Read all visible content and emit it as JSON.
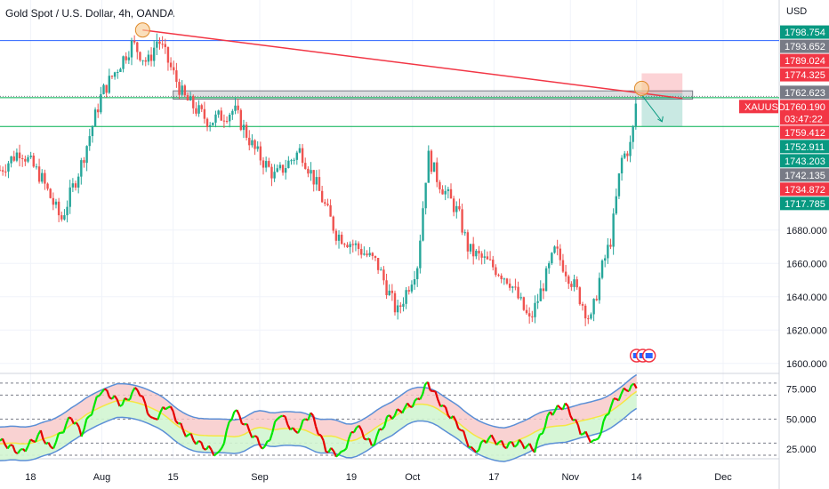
{
  "header": {
    "title": "Gold Spot / U.S. Dollar, 4h, OANDA"
  },
  "chart_data": [
    {
      "type": "candlestick",
      "symbol": "XAUUSD",
      "currency_label": "USD",
      "y_ticks": [
        "1600.000",
        "1620.000",
        "1640.000",
        "1660.000",
        "1680.000"
      ],
      "ylim": [
        1594,
        1818
      ],
      "x_ticks": [
        {
          "label": "18",
          "day": 0
        },
        {
          "label": "Aug",
          "day": 14
        },
        {
          "label": "15",
          "day": 28
        },
        {
          "label": "Sep",
          "day": 45
        },
        {
          "label": "19",
          "day": 63
        },
        {
          "label": "Oct",
          "day": 75
        },
        {
          "label": "17",
          "day": 91
        },
        {
          "label": "Nov",
          "day": 106
        },
        {
          "label": "14",
          "day": 119
        },
        {
          "label": "Dec",
          "day": 136
        }
      ],
      "x_range_days": [
        -6,
        147
      ],
      "price_path": [
        {
          "day": -6,
          "price": 1716
        },
        {
          "day": -2,
          "price": 1728
        },
        {
          "day": 2,
          "price": 1712
        },
        {
          "day": 6,
          "price": 1686
        },
        {
          "day": 10,
          "price": 1720
        },
        {
          "day": 14,
          "price": 1762
        },
        {
          "day": 20,
          "price": 1792
        },
        {
          "day": 23,
          "price": 1780
        },
        {
          "day": 25,
          "price": 1795
        },
        {
          "day": 30,
          "price": 1760
        },
        {
          "day": 35,
          "price": 1745
        },
        {
          "day": 40,
          "price": 1752
        },
        {
          "day": 44,
          "price": 1728
        },
        {
          "day": 48,
          "price": 1712
        },
        {
          "day": 53,
          "price": 1728
        },
        {
          "day": 56,
          "price": 1708
        },
        {
          "day": 60,
          "price": 1678
        },
        {
          "day": 64,
          "price": 1670
        },
        {
          "day": 68,
          "price": 1660
        },
        {
          "day": 72,
          "price": 1630
        },
        {
          "day": 76,
          "price": 1660
        },
        {
          "day": 78,
          "price": 1725
        },
        {
          "day": 80,
          "price": 1710
        },
        {
          "day": 84,
          "price": 1690
        },
        {
          "day": 86,
          "price": 1668
        },
        {
          "day": 90,
          "price": 1660
        },
        {
          "day": 94,
          "price": 1650
        },
        {
          "day": 98,
          "price": 1625
        },
        {
          "day": 101,
          "price": 1650
        },
        {
          "day": 103,
          "price": 1668
        },
        {
          "day": 107,
          "price": 1645
        },
        {
          "day": 110,
          "price": 1625
        },
        {
          "day": 112,
          "price": 1655
        },
        {
          "day": 114,
          "price": 1675
        },
        {
          "day": 116,
          "price": 1722
        },
        {
          "day": 118,
          "price": 1732
        },
        {
          "day": 119,
          "price": 1760
        }
      ],
      "horizontal_lines": [
        {
          "price": 1793.652,
          "color": "#2962ff"
        },
        {
          "price": 1759.412,
          "color": "#00b050"
        },
        {
          "price": 1742.135,
          "color": "#00b050"
        },
        {
          "price": 1760.19,
          "color": "#787b86",
          "style": "dotted"
        }
      ],
      "trendline": {
        "from": {
          "day": 22,
          "price": 1800
        },
        "to": {
          "day": 128,
          "price": 1759
        },
        "color": "#f23645"
      },
      "resistance_zone": {
        "day_from": 28,
        "day_to": 130,
        "price_low": 1758.5,
        "price_high": 1763.5
      },
      "circle_markers": [
        {
          "day": 22,
          "price": 1800
        },
        {
          "day": 120,
          "price": 1765
        }
      ],
      "position_tool": {
        "day_from": 120,
        "day_to": 128,
        "entry": 1762,
        "stop": 1774,
        "target": 1742
      },
      "projection_arrow": {
        "from": {
          "day": 120,
          "price": 1761
        },
        "to": {
          "day": 124,
          "price": 1745
        }
      },
      "event_flags": {
        "day": 119,
        "price": 1602,
        "count": 3
      },
      "price_tags": [
        {
          "price": 1798.754,
          "text": "1798.754",
          "color": "#089981"
        },
        {
          "price": 1793.652,
          "text": "1793.652",
          "color": "#787b86"
        },
        {
          "price": 1789.024,
          "text": "1789.024",
          "color": "#f23645"
        },
        {
          "price": 1774.325,
          "text": "1774.325",
          "color": "#f23645"
        },
        {
          "price": 1762.623,
          "text": "1762.623",
          "color": "#787b86"
        },
        {
          "price": 1760.19,
          "text": "1760.190",
          "color": "#f23645",
          "symbol_tag": "XAUUSD",
          "countdown": "03:47:22"
        },
        {
          "price": 1759.412,
          "text": "1759.412",
          "color": "#f23645"
        },
        {
          "price": 1752.911,
          "text": "1752.911",
          "color": "#089981"
        },
        {
          "price": 1743.203,
          "text": "1743.203",
          "color": "#089981"
        },
        {
          "price": 1742.135,
          "text": "1742.135",
          "color": "#787b86"
        },
        {
          "price": 1734.872,
          "text": "1734.872",
          "color": "#f23645"
        },
        {
          "price": 1717.785,
          "text": "1717.785",
          "color": "#089981"
        }
      ],
      "colors": {
        "up": "#26a69a",
        "down": "#ef5350",
        "bg": "#ffffff",
        "grid": "#e0e3eb"
      }
    },
    {
      "type": "oscillator",
      "y_ticks": [
        "25.000",
        "50.000",
        "75.000"
      ],
      "ylim": [
        17,
        88
      ],
      "dashed_levels": [
        80,
        70,
        50,
        30,
        20
      ],
      "band_colors": {
        "upper_fill": "#f8c7c7",
        "lower_fill": "#d2f5d2",
        "band_line": "#5b8fd6",
        "mid_line": "#f5e642"
      },
      "line_colors": {
        "up": "#00e600",
        "down": "#e60000"
      },
      "wave_points": [
        {
          "day": -6,
          "value": 32
        },
        {
          "day": -2,
          "value": 22
        },
        {
          "day": 2,
          "value": 38
        },
        {
          "day": 4,
          "value": 25
        },
        {
          "day": 8,
          "value": 52
        },
        {
          "day": 10,
          "value": 38
        },
        {
          "day": 14,
          "value": 75
        },
        {
          "day": 18,
          "value": 62
        },
        {
          "day": 21,
          "value": 76
        },
        {
          "day": 24,
          "value": 48
        },
        {
          "day": 27,
          "value": 62
        },
        {
          "day": 30,
          "value": 40
        },
        {
          "day": 33,
          "value": 30
        },
        {
          "day": 37,
          "value": 20
        },
        {
          "day": 40,
          "value": 58
        },
        {
          "day": 43,
          "value": 40
        },
        {
          "day": 46,
          "value": 25
        },
        {
          "day": 49,
          "value": 55
        },
        {
          "day": 52,
          "value": 38
        },
        {
          "day": 55,
          "value": 55
        },
        {
          "day": 58,
          "value": 25
        },
        {
          "day": 61,
          "value": 20
        },
        {
          "day": 64,
          "value": 45
        },
        {
          "day": 67,
          "value": 28
        },
        {
          "day": 70,
          "value": 50
        },
        {
          "day": 73,
          "value": 58
        },
        {
          "day": 76,
          "value": 65
        },
        {
          "day": 78,
          "value": 80
        },
        {
          "day": 81,
          "value": 60
        },
        {
          "day": 84,
          "value": 45
        },
        {
          "day": 87,
          "value": 22
        },
        {
          "day": 90,
          "value": 35
        },
        {
          "day": 93,
          "value": 28
        },
        {
          "day": 96,
          "value": 30
        },
        {
          "day": 99,
          "value": 25
        },
        {
          "day": 102,
          "value": 55
        },
        {
          "day": 105,
          "value": 62
        },
        {
          "day": 108,
          "value": 40
        },
        {
          "day": 111,
          "value": 30
        },
        {
          "day": 114,
          "value": 62
        },
        {
          "day": 117,
          "value": 75
        },
        {
          "day": 119,
          "value": 78
        }
      ]
    }
  ]
}
